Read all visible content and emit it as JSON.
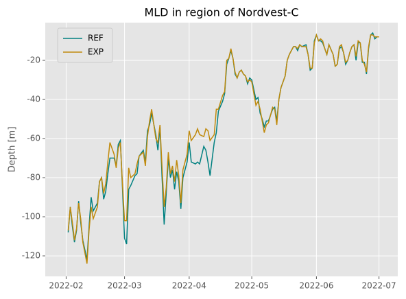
{
  "chart_data": {
    "type": "line",
    "title": "MLD in region of Nordvest-C",
    "ylabel": "Depth [m]",
    "x": [
      "2022-02-02",
      "2022-02-03",
      "2022-02-04",
      "2022-02-05",
      "2022-02-06",
      "2022-02-07",
      "2022-02-08",
      "2022-02-09",
      "2022-02-11",
      "2022-02-12",
      "2022-02-13",
      "2022-02-14",
      "2022-02-16",
      "2022-02-17",
      "2022-02-18",
      "2022-02-19",
      "2022-02-20",
      "2022-02-21",
      "2022-02-22",
      "2022-02-24",
      "2022-02-25",
      "2022-02-26",
      "2022-02-27",
      "2022-02-28",
      "2022-03-01",
      "2022-03-02",
      "2022-03-03",
      "2022-03-04",
      "2022-03-06",
      "2022-03-07",
      "2022-03-08",
      "2022-03-10",
      "2022-03-11",
      "2022-03-12",
      "2022-03-13",
      "2022-03-14",
      "2022-03-16",
      "2022-03-17",
      "2022-03-18",
      "2022-03-19",
      "2022-03-20",
      "2022-03-21",
      "2022-03-22",
      "2022-03-23",
      "2022-03-24",
      "2022-03-25",
      "2022-03-26",
      "2022-03-27",
      "2022-03-28",
      "2022-03-29",
      "2022-03-31",
      "2022-04-01",
      "2022-04-02",
      "2022-04-04",
      "2022-04-05",
      "2022-04-06",
      "2022-04-08",
      "2022-04-09",
      "2022-04-10",
      "2022-04-11",
      "2022-04-13",
      "2022-04-14",
      "2022-04-15",
      "2022-04-17",
      "2022-04-18",
      "2022-04-19",
      "2022-04-20",
      "2022-04-21",
      "2022-04-22",
      "2022-04-23",
      "2022-04-24",
      "2022-04-25",
      "2022-04-26",
      "2022-04-27",
      "2022-04-28",
      "2022-04-29",
      "2022-04-30",
      "2022-05-01",
      "2022-05-03",
      "2022-05-04",
      "2022-05-05",
      "2022-05-06",
      "2022-05-07",
      "2022-05-08",
      "2022-05-09",
      "2022-05-11",
      "2022-05-12",
      "2022-05-13",
      "2022-05-14",
      "2022-05-15",
      "2022-05-17",
      "2022-05-18",
      "2022-05-19",
      "2022-05-21",
      "2022-05-22",
      "2022-05-23",
      "2022-05-24",
      "2022-05-25",
      "2022-05-27",
      "2022-05-28",
      "2022-05-29",
      "2022-05-30",
      "2022-05-31",
      "2022-06-01",
      "2022-06-02",
      "2022-06-03",
      "2022-06-04",
      "2022-06-05",
      "2022-06-06",
      "2022-06-07",
      "2022-06-09",
      "2022-06-10",
      "2022-06-11",
      "2022-06-12",
      "2022-06-13",
      "2022-06-14",
      "2022-06-15",
      "2022-06-16",
      "2022-06-17",
      "2022-06-18",
      "2022-06-19",
      "2022-06-20",
      "2022-06-21",
      "2022-06-22",
      "2022-06-23",
      "2022-06-24",
      "2022-06-25",
      "2022-06-26",
      "2022-06-27",
      "2022-06-28",
      "2022-06-29",
      "2022-06-30",
      "2022-07-01"
    ],
    "series": [
      {
        "name": "REF",
        "color": "#008080",
        "values": [
          -108,
          -95,
          -105,
          -113,
          -107,
          -92,
          -103,
          -112,
          -122,
          -105,
          -90,
          -97,
          -93,
          -82,
          -80,
          -91,
          -87,
          -78,
          -70,
          -70,
          -74,
          -63,
          -61,
          -85,
          -111,
          -114,
          -86,
          -84,
          -79,
          -78,
          -69,
          -66,
          -72,
          -56,
          -53,
          -47,
          -58,
          -66,
          -54,
          -80,
          -104,
          -88,
          -70,
          -80,
          -76,
          -86,
          -77,
          -82,
          -96,
          -80,
          -72,
          -62,
          -72,
          -73,
          -72,
          -73,
          -64,
          -66,
          -72,
          -79,
          -62,
          -57,
          -46,
          -41,
          -37,
          -22,
          -19,
          -15,
          -19,
          -27,
          -29,
          -26,
          -25,
          -27,
          -28,
          -32,
          -29,
          -30,
          -40,
          -39,
          -47,
          -50,
          -54,
          -51,
          -51,
          -45,
          -44,
          -51,
          -40,
          -34,
          -28,
          -20,
          -17,
          -13,
          -13,
          -15,
          -12,
          -13,
          -12,
          -17,
          -25,
          -24,
          -10,
          -7,
          -10,
          -10,
          -11,
          -14,
          -17,
          -12,
          -17,
          -23,
          -22,
          -14,
          -13,
          -16,
          -22,
          -20,
          -16,
          -13,
          -12,
          -20,
          -11,
          -11,
          -21,
          -21,
          -27,
          -14,
          -7,
          -6,
          -9,
          -8,
          -8
        ]
      },
      {
        "name": "EXP",
        "color": "#c08a0c",
        "values": [
          -107,
          -95,
          -103,
          -112,
          -106,
          -93,
          -101,
          -113,
          -124,
          -107,
          -95,
          -101,
          -95,
          -82,
          -80,
          -88,
          -83,
          -72,
          -62,
          -68,
          -75,
          -65,
          -62,
          -83,
          -102,
          -102,
          -75,
          -80,
          -78,
          -73,
          -69,
          -67,
          -74,
          -59,
          -51,
          -45,
          -60,
          -62,
          -53,
          -75,
          -95,
          -85,
          -67,
          -78,
          -74,
          -82,
          -71,
          -79,
          -93,
          -76,
          -68,
          -56,
          -61,
          -58,
          -55,
          -58,
          -59,
          -55,
          -56,
          -61,
          -58,
          -45,
          -45,
          -38,
          -36,
          -20,
          -19,
          -14,
          -19,
          -26,
          -29,
          -26,
          -25,
          -27,
          -28,
          -31,
          -30,
          -31,
          -43,
          -41,
          -45,
          -51,
          -57,
          -53,
          -52,
          -44,
          -45,
          -53,
          -40,
          -34,
          -28,
          -20,
          -17,
          -13,
          -13,
          -14,
          -12,
          -13,
          -13,
          -17,
          -24,
          -24,
          -11,
          -7,
          -10,
          -9,
          -10,
          -14,
          -17,
          -12,
          -17,
          -23,
          -22,
          -13,
          -12,
          -16,
          -21,
          -20,
          -16,
          -13,
          -12,
          -18,
          -10,
          -11,
          -20,
          -22,
          -26,
          -13,
          -7,
          -7,
          -8,
          -8,
          -8
        ]
      }
    ],
    "xlim": [
      "2022-01-22",
      "2022-07-10"
    ],
    "xticks": [
      {
        "value": "2022-02-01",
        "label": "2022-02"
      },
      {
        "value": "2022-03-01",
        "label": "2022-03"
      },
      {
        "value": "2022-04-01",
        "label": "2022-04"
      },
      {
        "value": "2022-05-01",
        "label": "2022-05"
      },
      {
        "value": "2022-06-01",
        "label": "2022-06"
      },
      {
        "value": "2022-07-01",
        "label": "2022-07"
      }
    ],
    "ylim": [
      -130.5,
      -0.7
    ],
    "yticks": [
      -120,
      -100,
      -80,
      -60,
      -40,
      -20
    ],
    "grid": true,
    "legend": "upper left"
  }
}
